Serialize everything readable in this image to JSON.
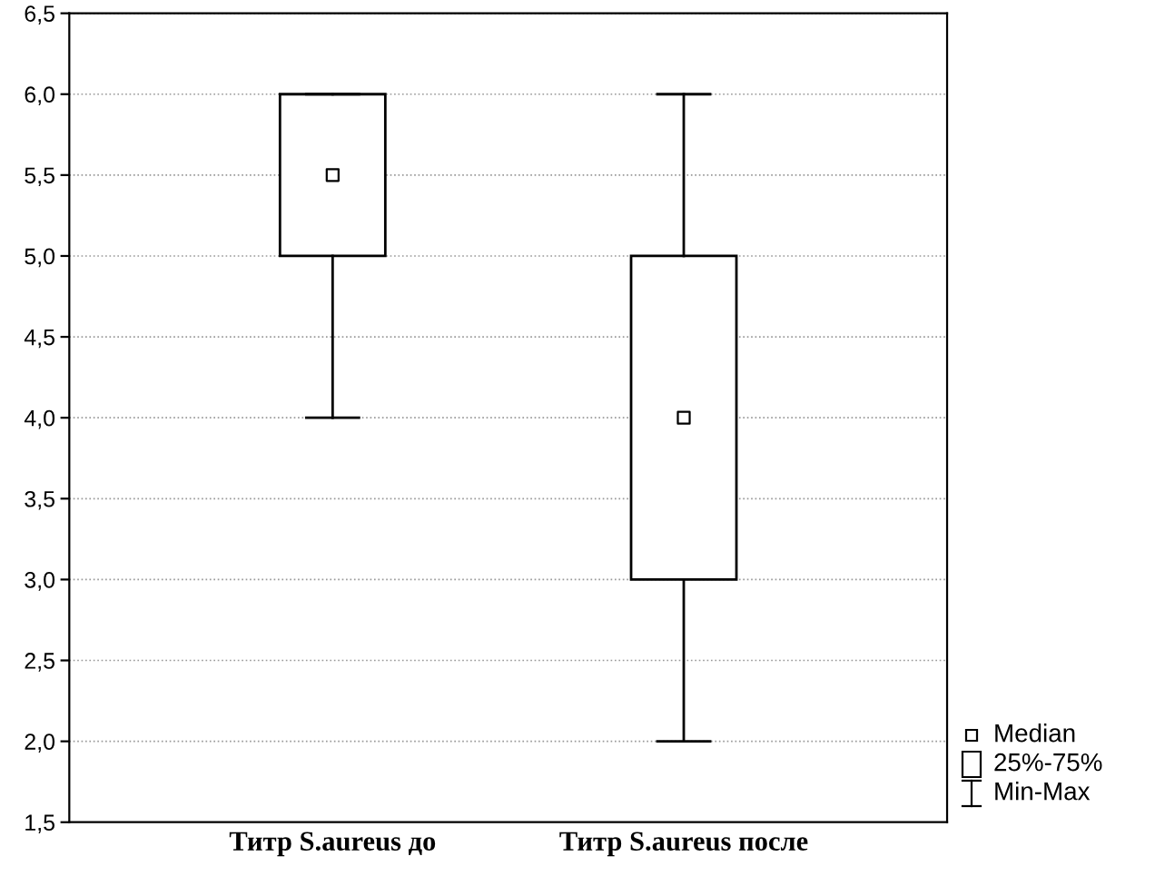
{
  "chart_data": {
    "type": "box",
    "categories": [
      "Титр S.aureus до",
      "Титр S.aureus после"
    ],
    "boxes": [
      {
        "low": 4,
        "q1": 5,
        "median": 5.5,
        "q3": 6,
        "high": 6
      },
      {
        "low": 2,
        "q1": 3,
        "median": 4,
        "q3": 5,
        "high": 6
      }
    ],
    "annotations": [
      "Median",
      "25%-75%",
      "Min-Max"
    ],
    "ylim": [
      1.5,
      6.5
    ],
    "yticks": [
      {
        "value": 1.5,
        "label": "1,5"
      },
      {
        "value": 2.0,
        "label": "2,0"
      },
      {
        "value": 2.5,
        "label": "2,5"
      },
      {
        "value": 3.0,
        "label": "3,0"
      },
      {
        "value": 3.5,
        "label": "3,5"
      },
      {
        "value": 4.0,
        "label": "4,0"
      },
      {
        "value": 4.5,
        "label": "4,5"
      },
      {
        "value": 5.0,
        "label": "5,0"
      },
      {
        "value": 5.5,
        "label": "5,5"
      },
      {
        "value": 6.0,
        "label": "6,0"
      },
      {
        "value": 6.5,
        "label": "6,5"
      }
    ],
    "grid": "y",
    "marker": "square"
  }
}
